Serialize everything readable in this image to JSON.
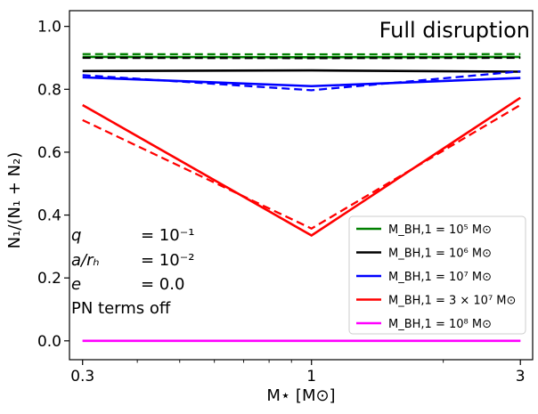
{
  "chart_data": {
    "type": "line",
    "title": "Full disruption",
    "xlabel": "M⋆ [M⊙]",
    "ylabel": "N₁/(N₁ + N₂)",
    "xscale": "log",
    "xlim": [
      0.28,
      3.2
    ],
    "ylim": [
      -0.06,
      1.05
    ],
    "x_ticks": [
      {
        "value": 0.3,
        "label": "0.3"
      },
      {
        "value": 1,
        "label": "1"
      },
      {
        "value": 3,
        "label": "3"
      }
    ],
    "y_ticks": [
      {
        "value": 0.0,
        "label": "0.0"
      },
      {
        "value": 0.2,
        "label": "0.2"
      },
      {
        "value": 0.4,
        "label": "0.4"
      },
      {
        "value": 0.6,
        "label": "0.6"
      },
      {
        "value": 0.8,
        "label": "0.8"
      },
      {
        "value": 1.0,
        "label": "1.0"
      }
    ],
    "grid": false,
    "legend_position": "lower-right",
    "line_styles": {
      "solid": "solid",
      "dashed": "dashed"
    },
    "series": [
      {
        "name": "M_BH,1 = 10⁵ M⊙",
        "color": "#008000",
        "x": [
          0.3,
          1,
          3
        ],
        "solid": [
          0.903,
          0.902,
          0.903
        ],
        "dashed": [
          0.912,
          0.911,
          0.912
        ]
      },
      {
        "name": "M_BH,1 = 10⁶ M⊙",
        "color": "#000000",
        "x": [
          0.3,
          1,
          3
        ],
        "solid": [
          0.858,
          0.86,
          0.856
        ],
        "dashed": [
          0.9,
          0.899,
          0.9
        ]
      },
      {
        "name": "M_BH,1 = 10⁷ M⊙",
        "color": "#0000ff",
        "x": [
          0.3,
          1,
          3
        ],
        "solid": [
          0.838,
          0.81,
          0.836
        ],
        "dashed": [
          0.845,
          0.797,
          0.857
        ]
      },
      {
        "name": "M_BH,1 = 3 × 10⁷ M⊙",
        "color": "#ff0000",
        "x": [
          0.3,
          1,
          3
        ],
        "solid": [
          0.75,
          0.335,
          0.773
        ],
        "dashed": [
          0.702,
          0.357,
          0.75
        ]
      },
      {
        "name": "M_BH,1 = 10⁸ M⊙",
        "color": "#ff00ff",
        "x": [
          0.3,
          1,
          3
        ],
        "solid": [
          0.0,
          0.0,
          0.0
        ],
        "dashed": [
          0.0,
          0.0,
          0.0
        ]
      }
    ],
    "annotations": [
      {
        "symbol": "q",
        "value": "= 10⁻¹"
      },
      {
        "symbol": "a/rₕ",
        "value": "= 10⁻²"
      },
      {
        "symbol": "e",
        "value": "= 0.0"
      },
      {
        "text": "PN terms off"
      }
    ]
  }
}
